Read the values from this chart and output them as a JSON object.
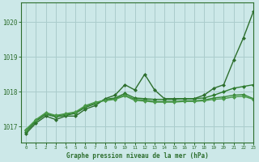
{
  "background_color": "#cce8e8",
  "plot_bg_color": "#cce8e8",
  "grid_color": "#aacccc",
  "line_color_main": "#2d6e2d",
  "xlabel": "Graphe pression niveau de la mer (hPa)",
  "xlim": [
    -0.5,
    23
  ],
  "ylim": [
    1016.55,
    1020.55
  ],
  "yticks": [
    1017,
    1018,
    1019,
    1020
  ],
  "xticks": [
    0,
    1,
    2,
    3,
    4,
    5,
    6,
    7,
    8,
    9,
    10,
    11,
    12,
    13,
    14,
    15,
    16,
    17,
    18,
    19,
    20,
    21,
    22,
    23
  ],
  "series": [
    {
      "x": [
        0,
        1,
        2,
        3,
        4,
        5,
        6,
        7,
        8,
        9,
        10,
        11,
        12,
        13,
        14,
        15,
        16,
        17,
        18,
        19,
        20,
        21,
        22,
        23
      ],
      "y": [
        1016.8,
        1017.1,
        1017.3,
        1017.2,
        1017.3,
        1017.3,
        1017.5,
        1017.6,
        1017.8,
        1017.9,
        1018.2,
        1018.05,
        1018.5,
        1018.05,
        1017.8,
        1017.8,
        1017.8,
        1017.8,
        1017.9,
        1018.1,
        1018.2,
        1018.9,
        1019.55,
        1020.3
      ],
      "marker": "D",
      "markersize": 2.0,
      "linewidth": 1.0,
      "color": "#2d6e2d"
    },
    {
      "x": [
        0,
        1,
        2,
        3,
        4,
        5,
        6,
        7,
        8,
        9,
        10,
        11,
        12,
        13,
        14,
        15,
        16,
        17,
        18,
        19,
        20,
        21,
        22,
        23
      ],
      "y": [
        1016.85,
        1017.15,
        1017.35,
        1017.28,
        1017.32,
        1017.38,
        1017.55,
        1017.65,
        1017.78,
        1017.82,
        1017.95,
        1017.82,
        1017.8,
        1017.78,
        1017.78,
        1017.78,
        1017.8,
        1017.8,
        1017.82,
        1017.9,
        1018.0,
        1018.1,
        1018.15,
        1018.2
      ],
      "marker": "D",
      "markersize": 2.0,
      "linewidth": 1.0,
      "color": "#2d7a2d"
    },
    {
      "x": [
        0,
        1,
        2,
        3,
        4,
        5,
        6,
        7,
        8,
        9,
        10,
        11,
        12,
        13,
        14,
        15,
        16,
        17,
        18,
        19,
        20,
        21,
        22,
        23
      ],
      "y": [
        1016.9,
        1017.18,
        1017.38,
        1017.3,
        1017.35,
        1017.4,
        1017.58,
        1017.68,
        1017.76,
        1017.8,
        1017.9,
        1017.78,
        1017.76,
        1017.72,
        1017.72,
        1017.72,
        1017.74,
        1017.74,
        1017.76,
        1017.82,
        1017.85,
        1017.9,
        1017.92,
        1017.8
      ],
      "marker": "D",
      "markersize": 2.0,
      "linewidth": 1.0,
      "color": "#3a8a3a"
    },
    {
      "x": [
        0,
        1,
        2,
        3,
        4,
        5,
        6,
        7,
        8,
        9,
        10,
        11,
        12,
        13,
        14,
        15,
        16,
        17,
        18,
        19,
        20,
        21,
        22,
        23
      ],
      "y": [
        1016.92,
        1017.2,
        1017.4,
        1017.32,
        1017.37,
        1017.42,
        1017.6,
        1017.7,
        1017.74,
        1017.78,
        1017.88,
        1017.75,
        1017.73,
        1017.7,
        1017.7,
        1017.7,
        1017.72,
        1017.72,
        1017.74,
        1017.78,
        1017.8,
        1017.85,
        1017.87,
        1017.78
      ],
      "marker": "D",
      "markersize": 2.0,
      "linewidth": 1.0,
      "color": "#4a9a4a"
    }
  ]
}
